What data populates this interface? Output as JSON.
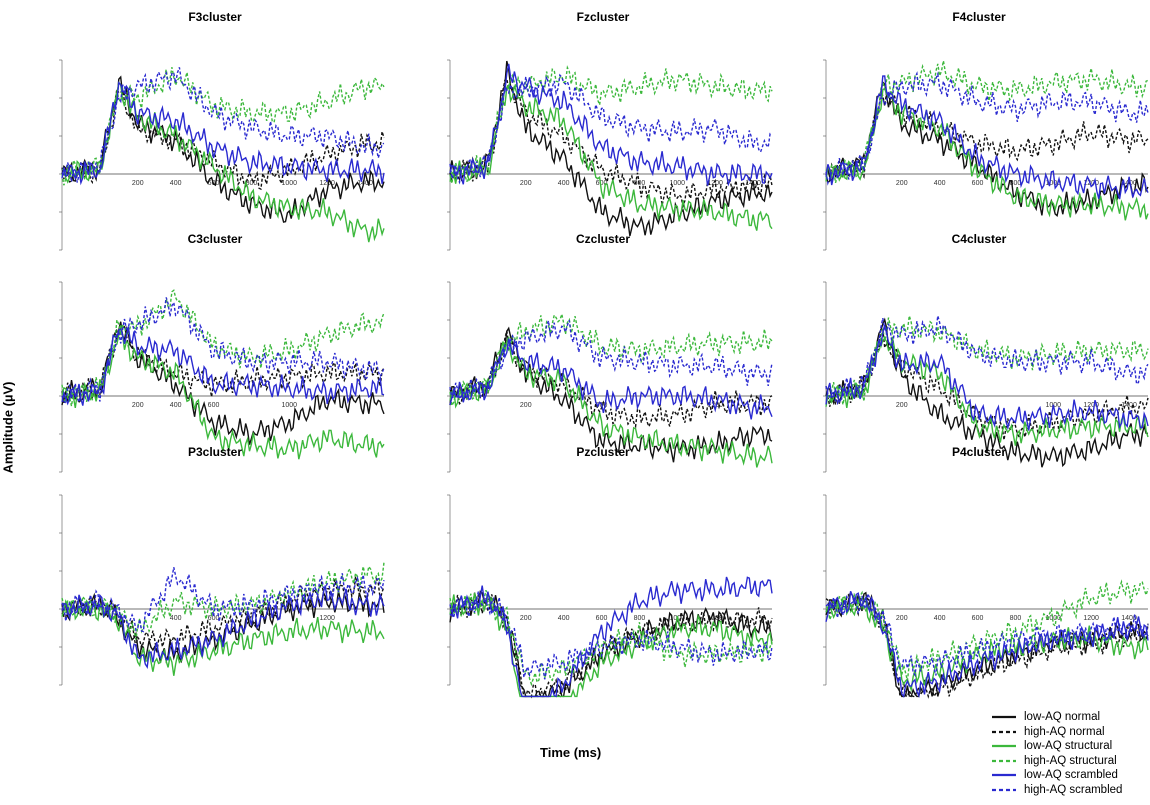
{
  "figure": {
    "ylabel": "Amplitude (µV)",
    "xlabel": "Time (ms)"
  },
  "legend": [
    {
      "label": "low-AQ normal",
      "color": "#111111",
      "dash": false
    },
    {
      "label": "high-AQ normal",
      "color": "#111111",
      "dash": true
    },
    {
      "label": "low-AQ structural",
      "color": "#3cb83c",
      "dash": false
    },
    {
      "label": "high-AQ structural",
      "color": "#3cb83c",
      "dash": true
    },
    {
      "label": "low-AQ scrambled",
      "color": "#2a2ad0",
      "dash": false
    },
    {
      "label": "high-AQ scrambled",
      "color": "#2a2ad0",
      "dash": true
    }
  ],
  "chart_data": [
    {
      "type": "line",
      "title": "F3cluster",
      "xlim": [
        -200,
        1500
      ],
      "ylim": [
        -2,
        3
      ],
      "xticks": [
        200,
        400,
        600,
        800,
        1000,
        1200,
        1400
      ],
      "x": [
        -200,
        0,
        100,
        200,
        400,
        600,
        800,
        1000,
        1200,
        1400
      ],
      "series": [
        {
          "name": "low-AQ normal",
          "values": [
            0,
            0.2,
            2.4,
            1.3,
            0.9,
            -0.2,
            -0.8,
            -1.1,
            -0.4,
            -0.2
          ]
        },
        {
          "name": "high-AQ normal",
          "values": [
            0,
            0.1,
            2.2,
            1.2,
            0.9,
            0.3,
            -0.2,
            0.1,
            0.5,
            0.8
          ]
        },
        {
          "name": "low-AQ structural",
          "values": [
            0,
            0.1,
            2.3,
            1.5,
            1.0,
            0.2,
            -0.6,
            -0.9,
            -1.0,
            -1.5
          ]
        },
        {
          "name": "high-AQ structural",
          "values": [
            0,
            0.2,
            2.2,
            2.0,
            2.6,
            1.8,
            1.6,
            1.6,
            1.9,
            2.3
          ]
        },
        {
          "name": "low-AQ scrambled",
          "values": [
            0,
            0.1,
            2.4,
            1.6,
            1.4,
            0.7,
            0.3,
            0.2,
            0.1,
            0.1
          ]
        },
        {
          "name": "high-AQ scrambled",
          "values": [
            0,
            0.2,
            2.0,
            2.3,
            2.6,
            1.6,
            1.2,
            1.0,
            1.0,
            0.7
          ]
        }
      ]
    },
    {
      "type": "line",
      "title": "Fzcluster",
      "xlim": [
        -200,
        1500
      ],
      "ylim": [
        -2,
        3
      ],
      "xticks": [
        200,
        400,
        600,
        800,
        1000,
        1200,
        1400
      ],
      "x": [
        -200,
        0,
        100,
        200,
        400,
        600,
        800,
        1000,
        1200,
        1400
      ],
      "series": [
        {
          "name": "low-AQ normal",
          "values": [
            0,
            0.3,
            2.7,
            1.2,
            0.4,
            -1.0,
            -1.4,
            -1.1,
            -0.7,
            -0.5
          ]
        },
        {
          "name": "high-AQ normal",
          "values": [
            0,
            0.2,
            2.5,
            1.6,
            1.0,
            0.1,
            -0.3,
            -0.6,
            -0.4,
            -0.3
          ]
        },
        {
          "name": "low-AQ structural",
          "values": [
            0,
            0.1,
            2.3,
            1.8,
            1.4,
            -0.3,
            -0.8,
            -0.9,
            -1.0,
            -1.2
          ]
        },
        {
          "name": "high-AQ structural",
          "values": [
            0,
            0.2,
            2.4,
            2.3,
            2.6,
            2.1,
            2.3,
            2.5,
            2.3,
            2.2
          ]
        },
        {
          "name": "low-AQ scrambled",
          "values": [
            0,
            0.2,
            2.6,
            2.3,
            1.9,
            0.7,
            0.3,
            0.2,
            0.0,
            0.0
          ]
        },
        {
          "name": "high-AQ scrambled",
          "values": [
            0,
            0.3,
            2.2,
            2.2,
            2.4,
            1.5,
            1.2,
            1.1,
            1.2,
            0.8
          ]
        }
      ]
    },
    {
      "type": "line",
      "title": "F4cluster",
      "xlim": [
        -200,
        1500
      ],
      "ylim": [
        -2,
        3
      ],
      "xticks": [
        200,
        400,
        600,
        800,
        1000,
        1200,
        1400
      ],
      "x": [
        -200,
        0,
        100,
        200,
        400,
        600,
        800,
        1000,
        1200,
        1400
      ],
      "series": [
        {
          "name": "low-AQ normal",
          "values": [
            0,
            0.3,
            2.4,
            1.3,
            0.9,
            0.2,
            -0.5,
            -0.9,
            -0.7,
            -0.3
          ]
        },
        {
          "name": "high-AQ normal",
          "values": [
            0,
            0.2,
            2.2,
            1.6,
            1.2,
            0.8,
            0.6,
            0.8,
            1.1,
            0.9
          ]
        },
        {
          "name": "low-AQ structural",
          "values": [
            0,
            0.1,
            2.2,
            1.6,
            1.2,
            0.1,
            -0.6,
            -0.8,
            -0.8,
            -0.9
          ]
        },
        {
          "name": "high-AQ structural",
          "values": [
            0,
            0.2,
            2.3,
            2.4,
            2.7,
            2.3,
            2.2,
            2.4,
            2.5,
            2.3
          ]
        },
        {
          "name": "low-AQ scrambled",
          "values": [
            0,
            0.2,
            2.4,
            1.8,
            1.4,
            0.4,
            0.0,
            -0.2,
            -0.3,
            -0.4
          ]
        },
        {
          "name": "high-AQ scrambled",
          "values": [
            0,
            0.3,
            2.0,
            2.3,
            2.4,
            1.9,
            1.7,
            1.9,
            1.9,
            1.6
          ]
        }
      ]
    },
    {
      "type": "line",
      "title": "C3cluster",
      "xlim": [
        -200,
        1500
      ],
      "ylim": [
        -2,
        3
      ],
      "xticks": [
        200,
        400,
        600,
        1000
      ],
      "x": [
        -200,
        0,
        100,
        200,
        400,
        600,
        800,
        1000,
        1200,
        1400
      ],
      "series": [
        {
          "name": "low-AQ normal",
          "values": [
            0,
            0.2,
            1.9,
            1.0,
            0.3,
            -0.7,
            -1.0,
            -0.7,
            -0.1,
            -0.2
          ]
        },
        {
          "name": "high-AQ normal",
          "values": [
            0,
            0.2,
            1.8,
            1.1,
            0.6,
            0.3,
            0.4,
            0.5,
            0.6,
            0.6
          ]
        },
        {
          "name": "low-AQ structural",
          "values": [
            0,
            0.1,
            1.6,
            1.0,
            0.6,
            -1.1,
            -1.3,
            -1.4,
            -1.1,
            -1.3
          ]
        },
        {
          "name": "high-AQ structural",
          "values": [
            0,
            0.2,
            1.8,
            1.8,
            2.6,
            1.3,
            1.0,
            1.2,
            1.6,
            1.9
          ]
        },
        {
          "name": "low-AQ scrambled",
          "values": [
            0,
            0.1,
            1.8,
            1.3,
            1.2,
            0.3,
            0.3,
            0.2,
            0.1,
            0.2
          ]
        },
        {
          "name": "high-AQ scrambled",
          "values": [
            0,
            0.2,
            1.7,
            1.9,
            2.4,
            1.2,
            0.9,
            0.9,
            0.9,
            0.7
          ]
        }
      ]
    },
    {
      "type": "line",
      "title": "Czcluster",
      "xlim": [
        -200,
        1500
      ],
      "ylim": [
        -2,
        3
      ],
      "xticks": [
        200,
        600,
        1200
      ],
      "x": [
        -200,
        0,
        100,
        200,
        400,
        600,
        800,
        1000,
        1200,
        1400
      ],
      "series": [
        {
          "name": "low-AQ normal",
          "values": [
            0,
            0.3,
            1.7,
            0.6,
            -0.1,
            -1.2,
            -1.3,
            -1.4,
            -1.3,
            -1.0
          ]
        },
        {
          "name": "high-AQ normal",
          "values": [
            0,
            0.2,
            1.5,
            0.7,
            0.3,
            -0.4,
            -0.6,
            -0.5,
            -0.2,
            -0.2
          ]
        },
        {
          "name": "low-AQ structural",
          "values": [
            0,
            0.2,
            1.4,
            0.6,
            0.4,
            -0.8,
            -1.1,
            -1.3,
            -1.4,
            -1.6
          ]
        },
        {
          "name": "high-AQ structural",
          "values": [
            0,
            0.3,
            1.4,
            1.7,
            2.0,
            1.3,
            1.2,
            1.3,
            1.4,
            1.4
          ]
        },
        {
          "name": "low-AQ scrambled",
          "values": [
            0,
            0.2,
            1.4,
            0.9,
            0.7,
            -0.2,
            0.0,
            0.0,
            -0.1,
            -0.3
          ]
        },
        {
          "name": "high-AQ scrambled",
          "values": [
            0,
            0.3,
            1.3,
            1.5,
            1.8,
            1.0,
            0.9,
            0.8,
            0.8,
            0.6
          ]
        }
      ]
    },
    {
      "type": "line",
      "title": "C4cluster",
      "xlim": [
        -200,
        1500
      ],
      "ylim": [
        -2,
        3
      ],
      "xticks": [
        200,
        1000,
        1200,
        1400
      ],
      "x": [
        -200,
        0,
        100,
        200,
        400,
        600,
        800,
        1000,
        1200,
        1400
      ],
      "series": [
        {
          "name": "low-AQ normal",
          "values": [
            0,
            0.2,
            1.9,
            0.5,
            -0.5,
            -1.0,
            -1.5,
            -1.6,
            -1.4,
            -1.0
          ]
        },
        {
          "name": "high-AQ normal",
          "values": [
            0,
            0.2,
            1.6,
            0.8,
            0.2,
            -0.6,
            -0.9,
            -0.7,
            -0.5,
            -0.3
          ]
        },
        {
          "name": "low-AQ structural",
          "values": [
            0,
            0.1,
            1.6,
            0.9,
            0.6,
            -0.8,
            -1.0,
            -0.9,
            -0.8,
            -0.8
          ]
        },
        {
          "name": "high-AQ structural",
          "values": [
            0,
            0.2,
            1.7,
            1.8,
            1.7,
            1.2,
            1.0,
            1.1,
            1.2,
            1.2
          ]
        },
        {
          "name": "low-AQ scrambled",
          "values": [
            0,
            0.2,
            1.7,
            0.8,
            0.9,
            -0.5,
            -0.6,
            -0.5,
            -0.4,
            -0.6
          ]
        },
        {
          "name": "high-AQ scrambled",
          "values": [
            0,
            0.3,
            1.8,
            1.6,
            1.8,
            1.1,
            0.9,
            0.9,
            0.9,
            0.6
          ]
        }
      ]
    },
    {
      "type": "line",
      "title": "P3cluster",
      "xlim": [
        -200,
        1500
      ],
      "ylim": [
        -2,
        3
      ],
      "xticks": [
        400,
        600,
        1200
      ],
      "x": [
        -200,
        0,
        100,
        200,
        400,
        600,
        800,
        1000,
        1200,
        1400
      ],
      "series": [
        {
          "name": "low-AQ normal",
          "values": [
            0,
            0.1,
            -0.3,
            -1.0,
            -1.2,
            -0.8,
            -0.4,
            0.0,
            0.2,
            0.1
          ]
        },
        {
          "name": "high-AQ normal",
          "values": [
            0,
            0.1,
            -0.2,
            -0.8,
            -0.8,
            -0.5,
            -0.2,
            0.2,
            0.5,
            0.5
          ]
        },
        {
          "name": "low-AQ structural",
          "values": [
            0,
            0.0,
            -0.3,
            -1.3,
            -1.4,
            -1.1,
            -0.8,
            -0.6,
            -0.5,
            -0.6
          ]
        },
        {
          "name": "high-AQ structural",
          "values": [
            0,
            0.1,
            -0.1,
            -0.6,
            0.2,
            0.0,
            0.1,
            0.4,
            0.7,
            0.9
          ]
        },
        {
          "name": "low-AQ scrambled",
          "values": [
            0,
            0.1,
            -0.2,
            -1.3,
            -1.1,
            -0.8,
            -0.3,
            0.1,
            0.3,
            0.1
          ]
        },
        {
          "name": "high-AQ scrambled",
          "values": [
            0,
            0.2,
            -0.1,
            -0.5,
            0.9,
            0.0,
            0.1,
            0.4,
            0.6,
            0.6
          ]
        }
      ]
    },
    {
      "type": "line",
      "title": "Pzcluster",
      "xlim": [
        -200,
        1500
      ],
      "ylim": [
        -2,
        3
      ],
      "xticks": [
        200,
        400,
        600,
        800,
        1000,
        1200
      ],
      "x": [
        -200,
        0,
        100,
        200,
        400,
        600,
        800,
        1000,
        1200,
        1400
      ],
      "series": [
        {
          "name": "low-AQ normal",
          "values": [
            0,
            0.3,
            -0.3,
            -2.5,
            -2.1,
            -1.2,
            -0.7,
            -0.3,
            -0.2,
            -0.5
          ]
        },
        {
          "name": "high-AQ normal",
          "values": [
            0,
            0.2,
            -0.3,
            -2.3,
            -2.0,
            -1.1,
            -0.6,
            -0.4,
            -0.3,
            -0.3
          ]
        },
        {
          "name": "low-AQ structural",
          "values": [
            0,
            0.2,
            -0.5,
            -3.1,
            -2.6,
            -1.4,
            -0.9,
            -0.5,
            -0.5,
            -0.8
          ]
        },
        {
          "name": "high-AQ structural",
          "values": [
            0,
            0.2,
            -0.2,
            -1.8,
            -1.6,
            -1.0,
            -0.7,
            -1.2,
            -1.2,
            -1.1
          ]
        },
        {
          "name": "low-AQ scrambled",
          "values": [
            0,
            0.3,
            -0.4,
            -2.9,
            -2.0,
            -0.6,
            0.2,
            0.5,
            0.5,
            0.6
          ]
        },
        {
          "name": "high-AQ scrambled",
          "values": [
            0,
            0.2,
            -0.2,
            -1.6,
            -1.4,
            -1.0,
            -0.8,
            -1.0,
            -1.2,
            -1.1
          ]
        }
      ]
    },
    {
      "type": "line",
      "title": "P4cluster",
      "xlim": [
        -200,
        1500
      ],
      "ylim": [
        -2,
        3
      ],
      "xticks": [
        200,
        400,
        600,
        800,
        1000,
        1200,
        1400
      ],
      "x": [
        -200,
        0,
        100,
        200,
        400,
        600,
        800,
        1000,
        1200,
        1400
      ],
      "series": [
        {
          "name": "low-AQ normal",
          "values": [
            0,
            0.3,
            -0.3,
            -2.4,
            -2.0,
            -1.6,
            -1.2,
            -0.9,
            -0.8,
            -0.6
          ]
        },
        {
          "name": "high-AQ normal",
          "values": [
            0,
            0.2,
            -0.3,
            -2.3,
            -2.1,
            -1.7,
            -1.3,
            -1.0,
            -0.9,
            -0.7
          ]
        },
        {
          "name": "low-AQ structural",
          "values": [
            0,
            0.1,
            -0.5,
            -1.9,
            -1.7,
            -1.2,
            -1.0,
            -0.8,
            -0.8,
            -1.0
          ]
        },
        {
          "name": "high-AQ structural",
          "values": [
            0,
            0.2,
            -0.2,
            -1.6,
            -1.3,
            -0.9,
            -0.6,
            -0.2,
            0.3,
            0.5
          ]
        },
        {
          "name": "low-AQ scrambled",
          "values": [
            0,
            0.3,
            -0.4,
            -2.1,
            -1.9,
            -1.4,
            -1.1,
            -0.8,
            -0.7,
            -0.5
          ]
        },
        {
          "name": "high-AQ scrambled",
          "values": [
            0,
            0.2,
            -0.2,
            -1.5,
            -1.4,
            -1.1,
            -0.8,
            -0.7,
            -0.6,
            -0.5
          ]
        }
      ]
    }
  ]
}
